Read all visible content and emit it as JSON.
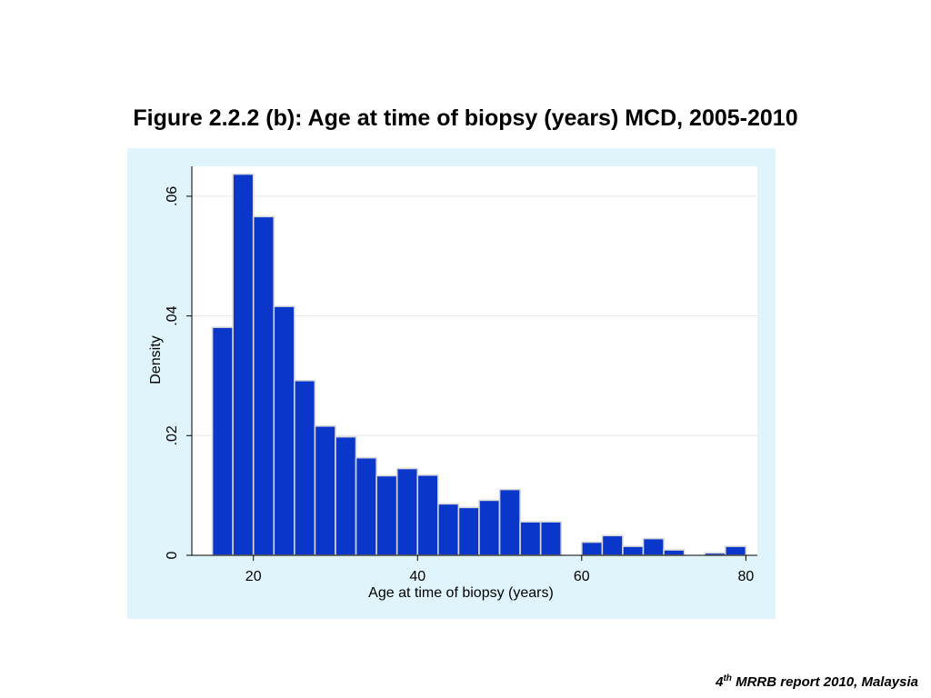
{
  "slide": {
    "title": "Figure 2.2.2 (b): Age at time of biopsy (years) MCD, 2005-2010",
    "footer_num": "4",
    "footer_sup": "th",
    "footer_rest": " MRRB report 2010, Malaysia"
  },
  "colors": {
    "outer_background": "#e0f4fc",
    "plot_background": "#ffffff",
    "bar_fill": "#0a37c9",
    "bar_edge": "#d8d8d8",
    "grid": "#e6e6e6"
  },
  "chart_data": {
    "type": "bar",
    "title": "",
    "xlabel": "Age at time of biopsy (years)",
    "ylabel": "Density",
    "xlim": [
      12.5,
      81.4
    ],
    "ylim": [
      0,
      0.065
    ],
    "grid": true,
    "legend": "none",
    "x_ticks": [
      {
        "value": 20,
        "label": "20"
      },
      {
        "value": 40,
        "label": "40"
      },
      {
        "value": 60,
        "label": "60"
      },
      {
        "value": 80,
        "label": "80"
      }
    ],
    "y_ticks": [
      {
        "value": 0,
        "label": "0"
      },
      {
        "value": 0.02,
        "label": ".02"
      },
      {
        "value": 0.04,
        "label": ".04"
      },
      {
        "value": 0.06,
        "label": ".06"
      }
    ],
    "bins": [
      {
        "x0": 15.0,
        "x1": 17.5,
        "value": 0.0381
      },
      {
        "x0": 17.5,
        "x1": 20.0,
        "value": 0.0637
      },
      {
        "x0": 20.0,
        "x1": 22.5,
        "value": 0.0566
      },
      {
        "x0": 22.5,
        "x1": 25.0,
        "value": 0.0416
      },
      {
        "x0": 25.0,
        "x1": 27.5,
        "value": 0.0292
      },
      {
        "x0": 27.5,
        "x1": 30.0,
        "value": 0.0216
      },
      {
        "x0": 30.0,
        "x1": 32.5,
        "value": 0.0198
      },
      {
        "x0": 32.5,
        "x1": 35.0,
        "value": 0.0163
      },
      {
        "x0": 35.0,
        "x1": 37.5,
        "value": 0.0133
      },
      {
        "x0": 37.5,
        "x1": 40.0,
        "value": 0.0145
      },
      {
        "x0": 40.0,
        "x1": 42.5,
        "value": 0.0134
      },
      {
        "x0": 42.5,
        "x1": 45.0,
        "value": 0.0086
      },
      {
        "x0": 45.0,
        "x1": 47.5,
        "value": 0.008
      },
      {
        "x0": 47.5,
        "x1": 50.0,
        "value": 0.0092
      },
      {
        "x0": 50.0,
        "x1": 52.5,
        "value": 0.011
      },
      {
        "x0": 52.5,
        "x1": 55.0,
        "value": 0.0056
      },
      {
        "x0": 55.0,
        "x1": 57.5,
        "value": 0.0056
      },
      {
        "x0": 57.5,
        "x1": 60.0,
        "value": 0.0
      },
      {
        "x0": 60.0,
        "x1": 62.5,
        "value": 0.0022
      },
      {
        "x0": 62.5,
        "x1": 65.0,
        "value": 0.0033
      },
      {
        "x0": 65.0,
        "x1": 67.5,
        "value": 0.0015
      },
      {
        "x0": 67.5,
        "x1": 70.0,
        "value": 0.0028
      },
      {
        "x0": 70.0,
        "x1": 72.5,
        "value": 0.0009
      },
      {
        "x0": 72.5,
        "x1": 75.0,
        "value": 0.0
      },
      {
        "x0": 75.0,
        "x1": 77.5,
        "value": 0.0004
      },
      {
        "x0": 77.5,
        "x1": 80.0,
        "value": 0.0015
      }
    ]
  }
}
